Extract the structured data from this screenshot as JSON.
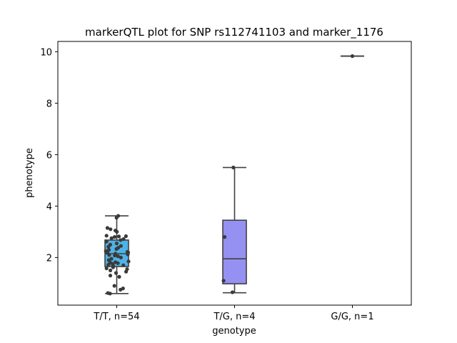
{
  "chart_data": {
    "type": "box",
    "title": "markerQTL plot for SNP rs112741103 and marker_1176",
    "xlabel": "genotype",
    "ylabel": "phenotype",
    "ylim": [
      0.15,
      10.4
    ],
    "yticks": [
      2,
      4,
      6,
      8,
      10
    ],
    "categories": [
      "T/T, n=54",
      "T/G, n=4",
      "G/G, n=1"
    ],
    "colors": [
      "#4fb3e8",
      "#9591f2",
      "#7a7ad0"
    ],
    "boxes": [
      {
        "q1": 1.65,
        "median": 2.15,
        "q3": 2.68,
        "whisker_low": 0.6,
        "whisker_high": 3.62
      },
      {
        "q1": 0.98,
        "median": 1.95,
        "q3": 3.45,
        "whisker_low": 0.63,
        "whisker_high": 5.5
      },
      {
        "q1": 9.83,
        "median": 9.83,
        "q3": 9.83,
        "whisker_low": 9.83,
        "whisker_high": 9.83
      }
    ],
    "points": [
      [
        3.55,
        3.62,
        3.15,
        3.1,
        3.05,
        3.0,
        2.85,
        2.83,
        2.82,
        2.8,
        2.75,
        2.72,
        2.68,
        2.62,
        2.55,
        2.5,
        2.45,
        2.42,
        2.38,
        2.33,
        2.3,
        2.25,
        2.22,
        2.2,
        2.18,
        2.15,
        2.12,
        2.1,
        2.08,
        2.05,
        2.0,
        1.95,
        1.9,
        1.85,
        1.82,
        1.8,
        1.78,
        1.75,
        1.72,
        1.7,
        1.68,
        1.62,
        1.58,
        1.55,
        1.5,
        1.45,
        1.4,
        1.3,
        1.25,
        0.9,
        0.8,
        0.75,
        0.62,
        0.6
      ],
      [
        5.5,
        2.8,
        1.1,
        0.65
      ],
      [
        9.83
      ]
    ]
  }
}
